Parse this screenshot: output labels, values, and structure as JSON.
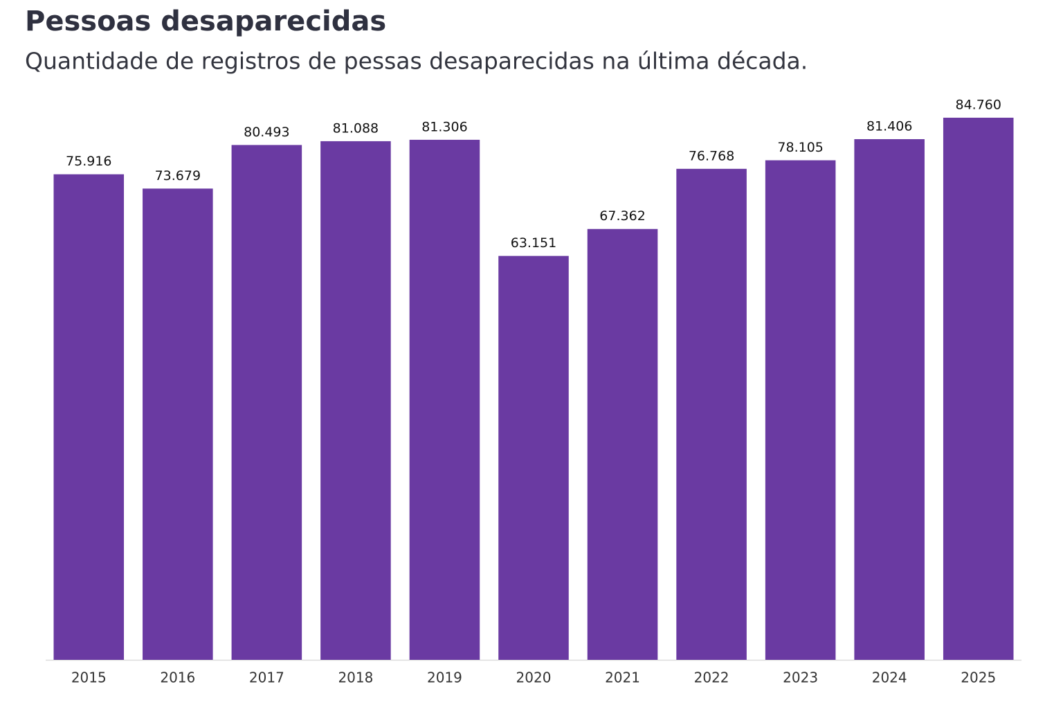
{
  "chart_data": {
    "type": "bar",
    "title": "Pessoas desaparecidas",
    "subtitle": "Quantidade de registros de pessas desaparecidas na última década.",
    "categories": [
      "2015",
      "2016",
      "2017",
      "2018",
      "2019",
      "2020",
      "2021",
      "2022",
      "2023",
      "2024",
      "2025"
    ],
    "values": [
      75916,
      73679,
      80493,
      81088,
      81306,
      63151,
      67362,
      76768,
      78105,
      81406,
      84760
    ],
    "value_labels": [
      "75.916",
      "73.679",
      "80.493",
      "81.088",
      "81.306",
      "63.151",
      "67.362",
      "76.768",
      "78.105",
      "81.406",
      "84.760"
    ],
    "color": "#6a3aa2"
  }
}
